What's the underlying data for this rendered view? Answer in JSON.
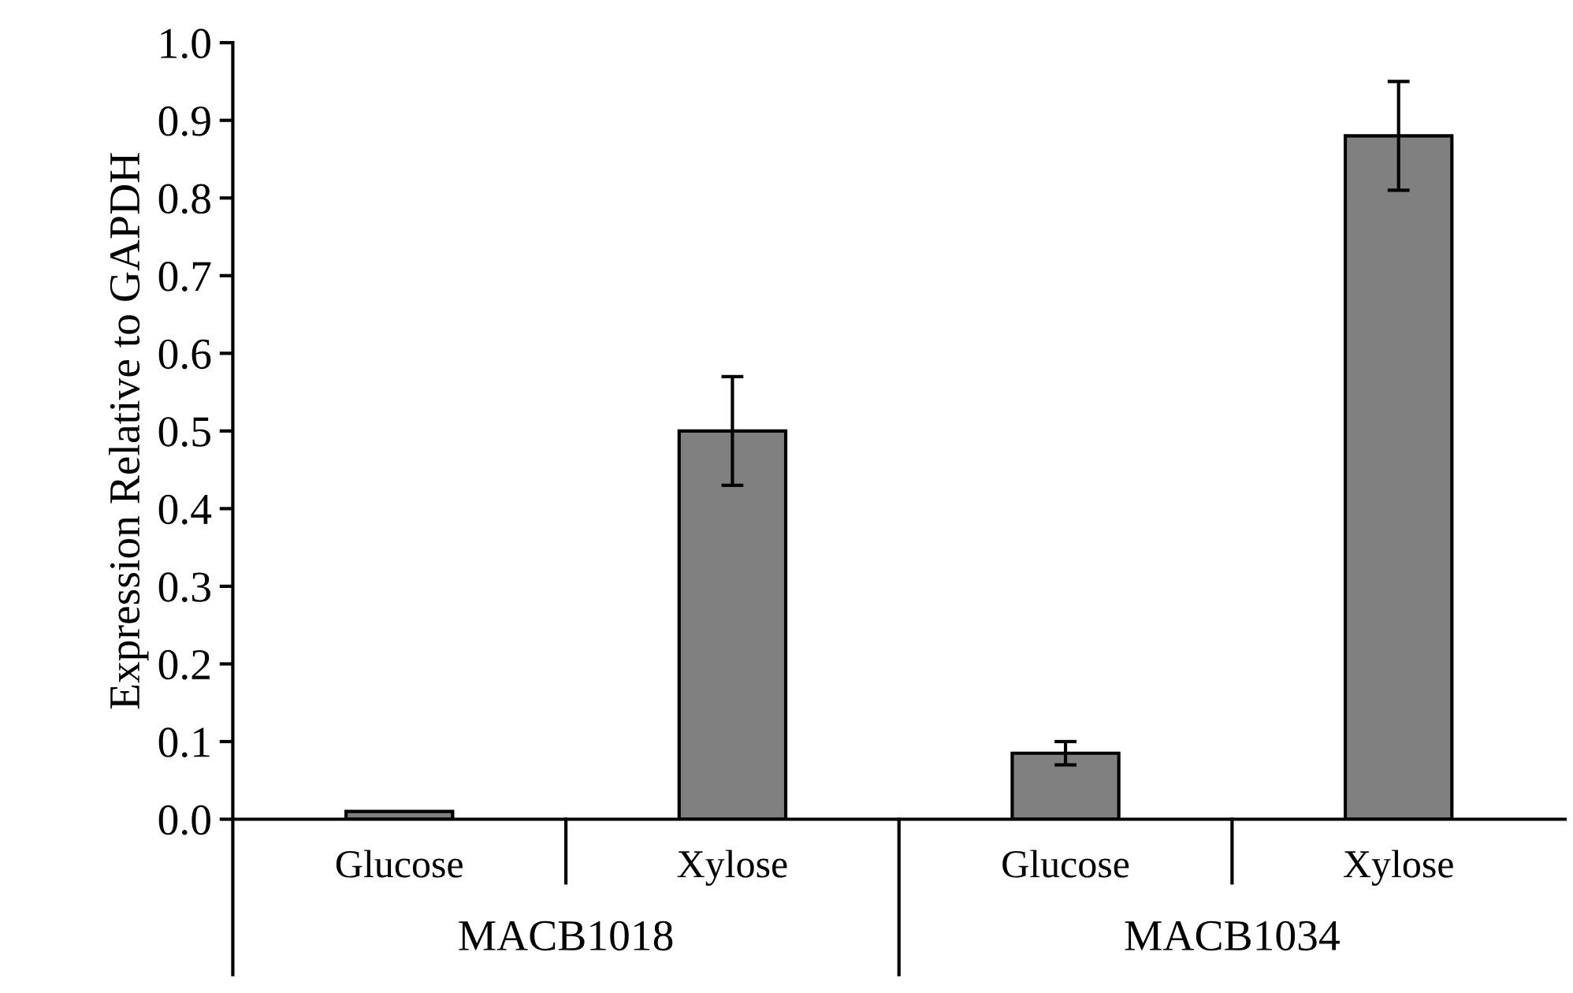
{
  "chart_data": {
    "type": "bar",
    "ylabel": "Expression Relative to GAPDH",
    "categories": [
      "Glucose",
      "Xylose",
      "Glucose",
      "Xylose"
    ],
    "values": [
      0.01,
      0.5,
      0.085,
      0.88
    ],
    "errors": [
      null,
      0.07,
      0.015,
      0.07
    ],
    "color": "#808080",
    "ylim": [
      0,
      1.0
    ],
    "yticks": [
      {
        "value": 0,
        "label": "0.0"
      },
      {
        "value": 0.1,
        "label": "0.1"
      },
      {
        "value": 0.2,
        "label": "0.2"
      },
      {
        "value": 0.3,
        "label": "0.3"
      },
      {
        "value": 0.4,
        "label": "0.4"
      },
      {
        "value": 0.5,
        "label": "0.5"
      },
      {
        "value": 0.6,
        "label": "0.6"
      },
      {
        "value": 0.7,
        "label": "0.7"
      },
      {
        "value": 0.8,
        "label": "0.8"
      },
      {
        "value": 0.9,
        "label": "0.9"
      },
      {
        "value": 1.0,
        "label": "1.0"
      }
    ],
    "annotations": [
      "MACB1018",
      "MACB1034"
    ],
    "grid": false,
    "legend": false
  }
}
